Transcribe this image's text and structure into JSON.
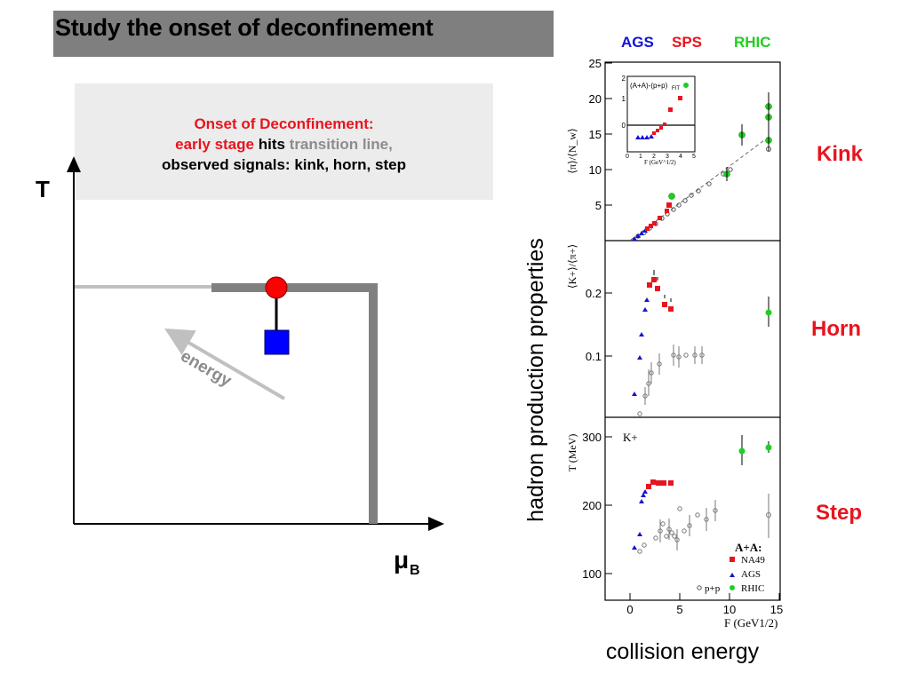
{
  "slide": {
    "title": "Study the onset of deconfinement"
  },
  "callout": {
    "line1": "Onset of Deconfinement:",
    "line2_red": "early stage",
    "line2_black": " hits ",
    "line2_gray": "transition line,",
    "line3": "observed signals: kink, horn, step"
  },
  "phase_diagram": {
    "y_axis_label": "T",
    "x_axis_label": "μ",
    "x_axis_subscript": "B",
    "arrow_label": "energy"
  },
  "side_labels": {
    "vertical_label": "hadron production properties",
    "bottom_label": "collision energy",
    "kink": "Kink",
    "horn": "Horn",
    "step": "Step"
  },
  "legend_top": {
    "ags": "AGS",
    "sps": "SPS",
    "rhic": "RHIC"
  },
  "colors": {
    "title_bar": "#7f7f7f",
    "callout_bg": "#ececec",
    "red": "#e8141e",
    "blue": "#1414d2",
    "green": "#1ecf1e",
    "phase_line": "#808080",
    "crossover_line": "#c0c0c0"
  },
  "panels": {
    "pion": {
      "ylabel": "⟨π⟩/⟨N_w⟩",
      "ylim": [
        0,
        25
      ],
      "yticks": [
        "5",
        "10",
        "15",
        "20",
        "25"
      ],
      "inset": {
        "label": "(A+A)-(p+p)",
        "label_sub": "FIT",
        "xlabel": "F (GeV^1/2)",
        "yticks": [
          "0",
          "1",
          "2"
        ],
        "xticks": [
          "0",
          "1",
          "2",
          "3",
          "4",
          "5"
        ]
      }
    },
    "kaon_ratio": {
      "ylabel": "⟨K+⟩/⟨π+⟩",
      "yticks": [
        "0.1",
        "0.2"
      ]
    },
    "slope": {
      "ylabel": "T (MeV)",
      "annotation": "K+",
      "yticks": [
        "100",
        "200",
        "300"
      ],
      "xticks": [
        "0",
        "5",
        "10",
        "15"
      ],
      "xlabel": "F (GeV1/2)",
      "legend": {
        "heading": "A+A:",
        "na49": "NA49",
        "ags": "AGS",
        "rhic": "RHIC",
        "pp": "p+p"
      }
    }
  }
}
